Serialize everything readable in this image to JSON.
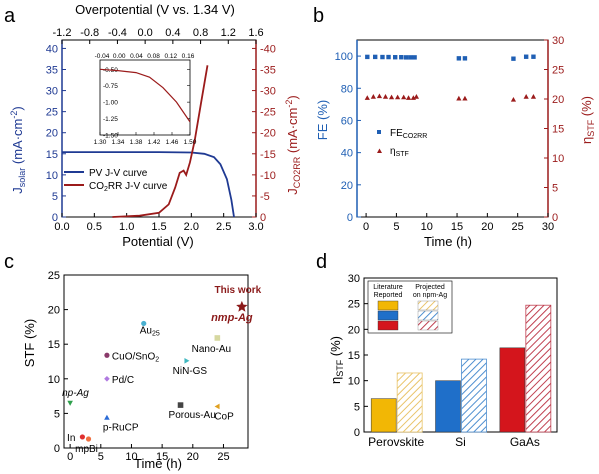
{
  "panels": {
    "a": {
      "letter": "a",
      "top_label": "Overpotential (V vs. 1.34 V)",
      "ylabel_left": "J",
      "ylabel_left_sub": "solar",
      "ylabel_left_unit": " (mA·cm",
      "ylabel_right": "J",
      "ylabel_right_sub": "CO2RR",
      "ylabel_right_unit": " (mA·cm",
      "xlabel": "Potential (V)",
      "legend_pv": "PV J-V curve",
      "legend_co2": "CO",
      "legend_co2_rest": "RR J-V curve"
    },
    "b": {
      "letter": "b",
      "ylabel_left": "FE (%)",
      "ylabel_right_main": "η",
      "ylabel_right_sub": "STF",
      "ylabel_right_unit": " (%)",
      "xlabel": "Time (h)",
      "legend_fe": "FE",
      "legend_fe_sub": "CO2RR",
      "legend_eta": "η",
      "legend_eta_sub": "STF"
    },
    "c": {
      "letter": "c",
      "ylabel": "STF (%)",
      "xlabel": "Time (h)",
      "this_work": "This work",
      "nmp_ag": "nmp-Ag"
    },
    "d": {
      "letter": "d",
      "ylabel_main": "η",
      "ylabel_sub": "STF",
      "ylabel_unit": " (%)",
      "legend_lit": "Literature Reported",
      "legend_proj": "Projected on npm-Ag"
    }
  },
  "chart_data": [
    {
      "panel": "a",
      "type": "line",
      "xlabel": "Potential (V)",
      "ylabel": "Jsolar (mA·cm-2)",
      "ylabel_right": "JCO2RR (mA·cm-2)",
      "top_axis_label": "Overpotential (V vs. 1.34 V)",
      "xlim": [
        0.0,
        3.0
      ],
      "ylim": [
        0,
        42
      ],
      "ylim_right": [
        0,
        -40
      ],
      "top_xlim": [
        -1.2,
        1.6
      ],
      "xticks": [
        "0.0",
        "0.5",
        "1.0",
        "1.5",
        "2.0",
        "2.5",
        "3.0"
      ],
      "yticks": [
        "0",
        "5",
        "10",
        "15",
        "20",
        "25",
        "30",
        "35",
        "40"
      ],
      "yticks_right": [
        "0",
        "-5",
        "-10",
        "-15",
        "-20",
        "-25",
        "-30",
        "-35",
        "-40"
      ],
      "top_ticks": [
        "-1.2",
        "-0.8",
        "-0.4",
        "0.0",
        "0.4",
        "0.8",
        "1.2",
        "1.6"
      ],
      "series": [
        {
          "name": "PV J-V curve",
          "color": "#1f3a93",
          "x": [
            0.0,
            0.5,
            1.0,
            1.5,
            2.0,
            2.2,
            2.35,
            2.45,
            2.55,
            2.62,
            2.66
          ],
          "y": [
            15.4,
            15.4,
            15.4,
            15.4,
            15.3,
            15.0,
            14.2,
            12.5,
            9.0,
            4.0,
            0.0
          ]
        },
        {
          "name": "CO2RR J-V curve",
          "color": "#9b1b1b",
          "x": [
            0.78,
            1.2,
            1.5,
            1.65,
            1.75,
            1.82,
            1.88,
            1.92,
            1.98,
            2.05,
            2.15,
            2.25
          ],
          "y_right": [
            0.0,
            -0.3,
            -1.0,
            -3.0,
            -7.0,
            -10.5,
            -11.0,
            -10.0,
            -13.0,
            -18.0,
            -27.0,
            -36.0
          ]
        }
      ],
      "inset": {
        "xlim": [
          1.3,
          1.5
        ],
        "ylim": [
          -1.5,
          -0.45
        ],
        "xticks": [
          "1.30",
          "1.34",
          "1.38",
          "1.42",
          "1.46",
          "1.50"
        ],
        "yticks": [
          "-0.50",
          "-0.75",
          "-1.00",
          "-1.25",
          "-1.50"
        ],
        "top_ticks": [
          "-0.04",
          "0.00",
          "0.04",
          "0.08",
          "0.12",
          "0.16"
        ],
        "x": [
          1.3,
          1.34,
          1.38,
          1.41,
          1.44,
          1.47,
          1.5
        ],
        "y": [
          -0.5,
          -0.52,
          -0.55,
          -0.62,
          -0.78,
          -1.0,
          -1.3
        ]
      }
    },
    {
      "panel": "b",
      "type": "scatter",
      "xlabel": "Time (h)",
      "ylabel": "FE (%)",
      "ylabel_right": "ηSTF (%)",
      "xlim": [
        -1.5,
        30
      ],
      "ylim": [
        0,
        110
      ],
      "ylim_right": [
        0,
        30
      ],
      "xticks": [
        "0",
        "5",
        "10",
        "15",
        "20",
        "25",
        "30"
      ],
      "yticks": [
        "0",
        "20",
        "40",
        "60",
        "80",
        "100"
      ],
      "yticks_right": [
        "0",
        "5",
        "10",
        "15",
        "20",
        "25",
        "30"
      ],
      "series": [
        {
          "name": "FECO2RR",
          "marker": "square",
          "color": "#1f5fb4",
          "x": [
            0.2,
            1.5,
            2.7,
            3.7,
            4.8,
            5.8,
            6.6,
            7.3,
            8.0,
            15.3,
            16.3,
            24.3,
            26.4,
            27.6
          ],
          "y": [
            99.5,
            99.5,
            99.4,
            99.4,
            99.3,
            99.3,
            99.2,
            99.2,
            99.2,
            98.6,
            98.6,
            98.4,
            99.6,
            99.6
          ]
        },
        {
          "name": "ηSTF",
          "marker": "triangle",
          "color": "#9b1b1b",
          "x": [
            0.2,
            1.2,
            2.2,
            3.2,
            4.2,
            5.2,
            6.2,
            7.0,
            7.8,
            8.3,
            15.3,
            16.3,
            24.3,
            26.4,
            27.6
          ],
          "y_right": [
            20.2,
            20.4,
            20.5,
            20.4,
            20.3,
            20.3,
            20.3,
            20.2,
            20.2,
            20.4,
            20.1,
            20.1,
            19.9,
            20.4,
            20.4
          ]
        }
      ]
    },
    {
      "panel": "c",
      "type": "scatter",
      "xlabel": "Time (h)",
      "ylabel": "STF (%)",
      "xlim": [
        -1,
        29
      ],
      "ylim": [
        0,
        25
      ],
      "xticks": [
        "0",
        "5",
        "10",
        "15",
        "20",
        "25"
      ],
      "yticks": [
        "0",
        "5",
        "10",
        "15",
        "20",
        "25"
      ],
      "points": [
        {
          "label": "This work",
          "label2": "nmp-Ag",
          "x": 28,
          "y": 20.4,
          "color": "#8b1a1a",
          "marker": "star"
        },
        {
          "label": "Au25",
          "x": 12,
          "y": 18.0,
          "color": "#4ab0d0",
          "marker": "circle"
        },
        {
          "label": "Nano-Au",
          "x": 24,
          "y": 15.9,
          "color": "#d6d8a0",
          "marker": "square"
        },
        {
          "label": "CuO/SnO2",
          "x": 6,
          "y": 13.4,
          "color": "#8a3a6a",
          "marker": "circle"
        },
        {
          "label": "NiN-GS",
          "x": 19,
          "y": 12.6,
          "color": "#40b8c0",
          "marker": "triangle-right"
        },
        {
          "label": "Pd/C",
          "x": 6,
          "y": 10.0,
          "color": "#b07ae0",
          "marker": "diamond"
        },
        {
          "label": "np-Ag",
          "x": 0,
          "y": 6.5,
          "color": "#2ea04c",
          "marker": "triangle-down"
        },
        {
          "label": "Porous-Au",
          "x": 18,
          "y": 6.2,
          "color": "#444444",
          "marker": "square"
        },
        {
          "label": "CoP",
          "x": 24,
          "y": 6.0,
          "color": "#e0a020",
          "marker": "triangle-left"
        },
        {
          "label": "p-RuCP",
          "x": 6,
          "y": 4.4,
          "color": "#2b6bd6",
          "marker": "triangle"
        },
        {
          "label": "In",
          "x": 2,
          "y": 1.6,
          "color": "#e03030",
          "marker": "circle"
        },
        {
          "label": "mpBi",
          "x": 3,
          "y": 1.3,
          "color": "#f07040",
          "marker": "circle"
        }
      ]
    },
    {
      "panel": "d",
      "type": "bar",
      "ylabel": "ηSTF (%)",
      "categories": [
        "Perovskite",
        "Si",
        "GaAs"
      ],
      "ylim": [
        0,
        30
      ],
      "yticks": [
        "0",
        "5",
        "10",
        "15",
        "20",
        "25",
        "30"
      ],
      "series": [
        {
          "name": "Literature Reported",
          "values": [
            6.5,
            10.0,
            16.4
          ],
          "colors": [
            "#f2b705",
            "#1f6fc9",
            "#d4151c"
          ]
        },
        {
          "name": "Projected on npm-Ag",
          "values": [
            11.5,
            14.2,
            24.7
          ],
          "colors": [
            "#e9c46a",
            "#4f8fd0",
            "#c04050"
          ]
        }
      ]
    }
  ]
}
